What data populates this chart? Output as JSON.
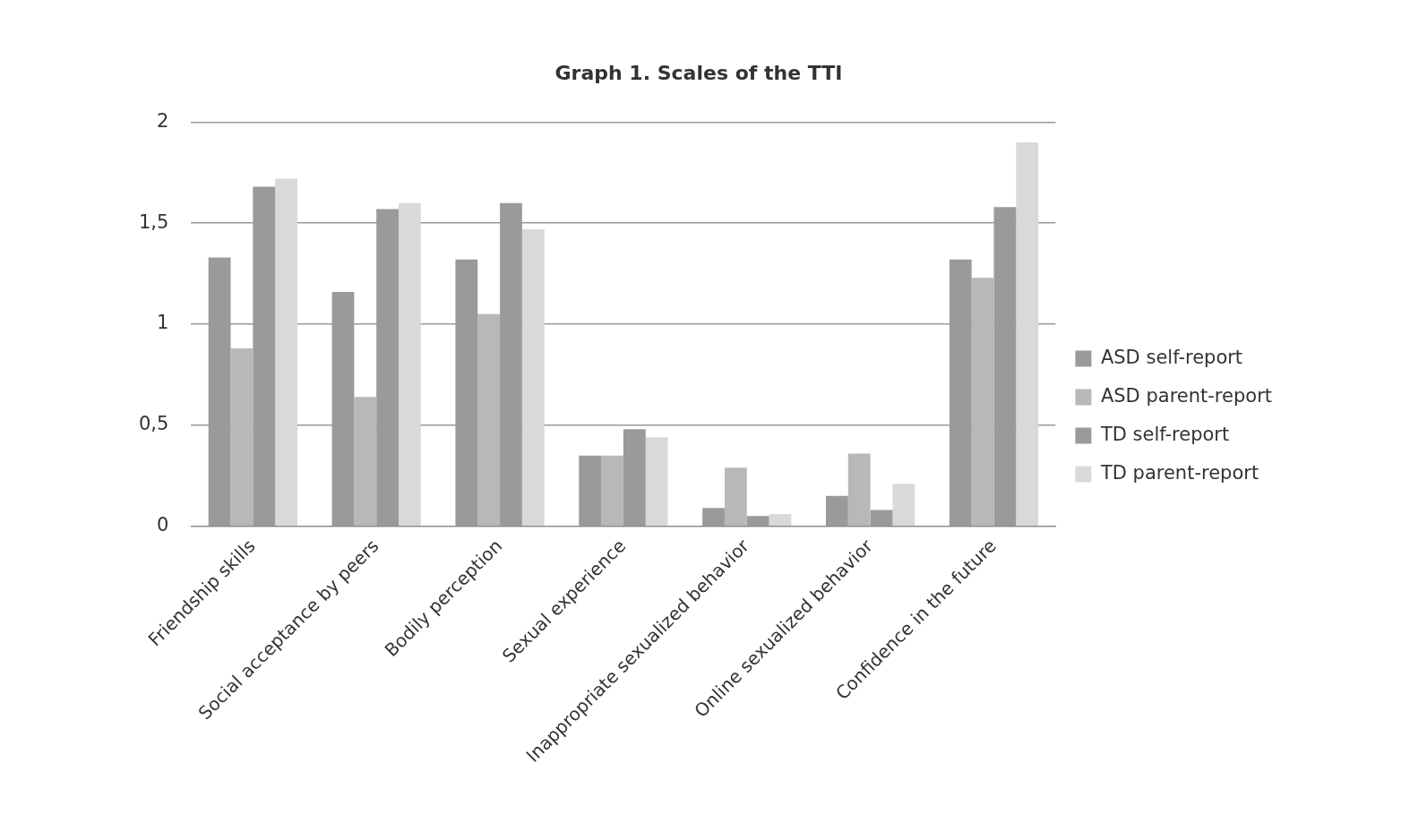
{
  "chart_data": {
    "type": "bar",
    "title": "Graph 1. Scales of the TTI",
    "categories": [
      "Friendship skills",
      "Social acceptance by peers",
      "Bodily perception",
      "Sexual experience",
      "Inappropriate sexualized behavior",
      "Online sexualized behavior",
      "Confidence in the future"
    ],
    "series": [
      {
        "name": "ASD self-report",
        "color": "#9a9a9a",
        "values": [
          1.33,
          1.16,
          1.32,
          0.35,
          0.09,
          0.15,
          1.32
        ]
      },
      {
        "name": "ASD parent-report",
        "color": "#b8b8b8",
        "values": [
          0.88,
          0.64,
          1.05,
          0.35,
          0.29,
          0.36,
          1.23
        ]
      },
      {
        "name": "TD self-report",
        "color": "#9a9a9a",
        "values": [
          1.68,
          1.57,
          1.6,
          0.48,
          0.05,
          0.08,
          1.58
        ]
      },
      {
        "name": "TD parent-report",
        "color": "#d9d9d9",
        "values": [
          1.72,
          1.6,
          1.47,
          0.44,
          0.06,
          0.21,
          1.9
        ]
      }
    ],
    "ylim": [
      0,
      2
    ],
    "yticks": [
      0,
      {
        "value": 0.5,
        "label": "0,5"
      },
      1,
      {
        "value": 1.5,
        "label": "1,5"
      },
      2
    ],
    "grid": "y",
    "legend": "right"
  }
}
